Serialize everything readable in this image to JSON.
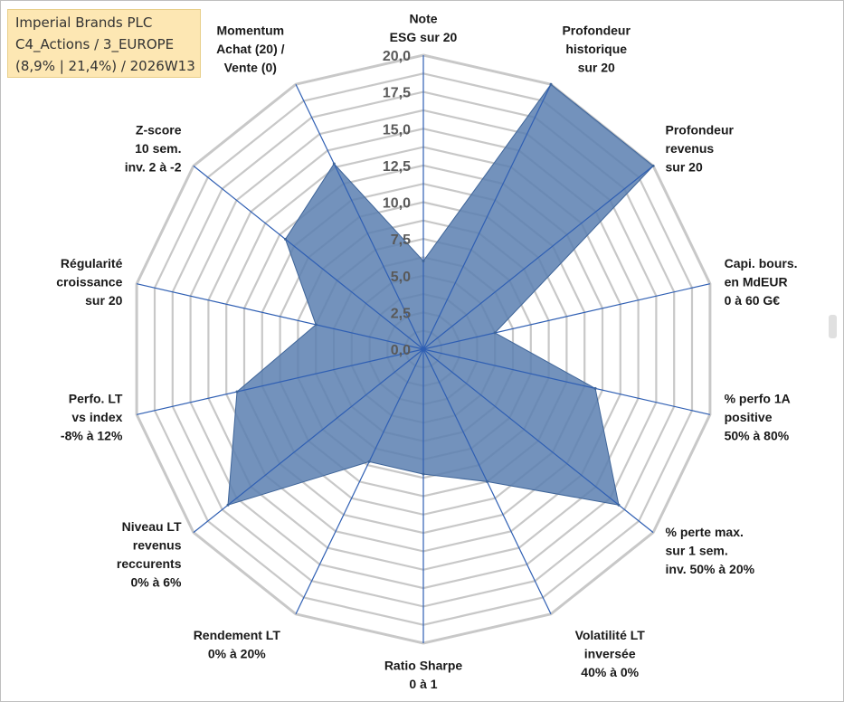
{
  "info_box": {
    "line1": "Imperial Brands PLC",
    "line2": "C4_Actions / 3_EUROPE",
    "line3": "(8,9% | 21,4%) / 2026W13"
  },
  "chart_data": {
    "type": "radar",
    "title": "",
    "range": [
      0,
      20
    ],
    "ticks": [
      "0,0",
      "2,5",
      "5,0",
      "7,5",
      "10,0",
      "12,5",
      "15,0",
      "17,5",
      "20,0"
    ],
    "axes": [
      {
        "name": "esg",
        "label": [
          "Note",
          "ESG sur 20"
        ],
        "value": 6
      },
      {
        "name": "profondeur-historique",
        "label": [
          "Profondeur",
          "historique",
          "sur 20"
        ],
        "value": 20
      },
      {
        "name": "profondeur-revenus",
        "label": [
          "Profondeur",
          "revenus",
          "sur 20"
        ],
        "value": 20
      },
      {
        "name": "capi-bours",
        "label": [
          "Capi. bours.",
          "en MdEUR",
          "0 à 60 G€"
        ],
        "value": 5
      },
      {
        "name": "perfo-1a",
        "label": [
          "% perfo 1A",
          "positive",
          "50% à 80%"
        ],
        "value": 12
      },
      {
        "name": "perte-max",
        "label": [
          "% perte max.",
          "sur 1 sem.",
          "inv. 50% à 20%"
        ],
        "value": 17
      },
      {
        "name": "volatilite",
        "label": [
          "Volatilité LT",
          "inversée",
          "40% à 0%"
        ],
        "value": 10
      },
      {
        "name": "sharpe",
        "label": [
          "Ratio Sharpe",
          "0 à 1"
        ],
        "value": 8.5
      },
      {
        "name": "rendement",
        "label": [
          "Rendement LT",
          "0% à 20%"
        ],
        "value": 8.5
      },
      {
        "name": "niveau-lt",
        "label": [
          "Niveau LT",
          "revenus",
          "reccurents",
          "0% à 6%"
        ],
        "value": 17
      },
      {
        "name": "perfo-lt",
        "label": [
          "Perfo. LT",
          "vs index",
          "-8% à 12%"
        ],
        "value": 13
      },
      {
        "name": "regularite",
        "label": [
          "Régularité",
          "croissance",
          "sur 20"
        ],
        "value": 7.5
      },
      {
        "name": "z-score",
        "label": [
          "Z-score",
          "10 sem.",
          "inv. 2 à -2"
        ],
        "value": 12
      },
      {
        "name": "momentum",
        "label": [
          "Momentum",
          "Achat (20) /",
          "Vente (0)"
        ],
        "value": 14
      }
    ],
    "series": [
      {
        "name": "Imperial Brands PLC",
        "color": "#5a7fb0",
        "stroke": "#3f6599"
      }
    ],
    "colors": {
      "grid": "#c8c8c8",
      "spoke": "#2f5fb3"
    }
  }
}
